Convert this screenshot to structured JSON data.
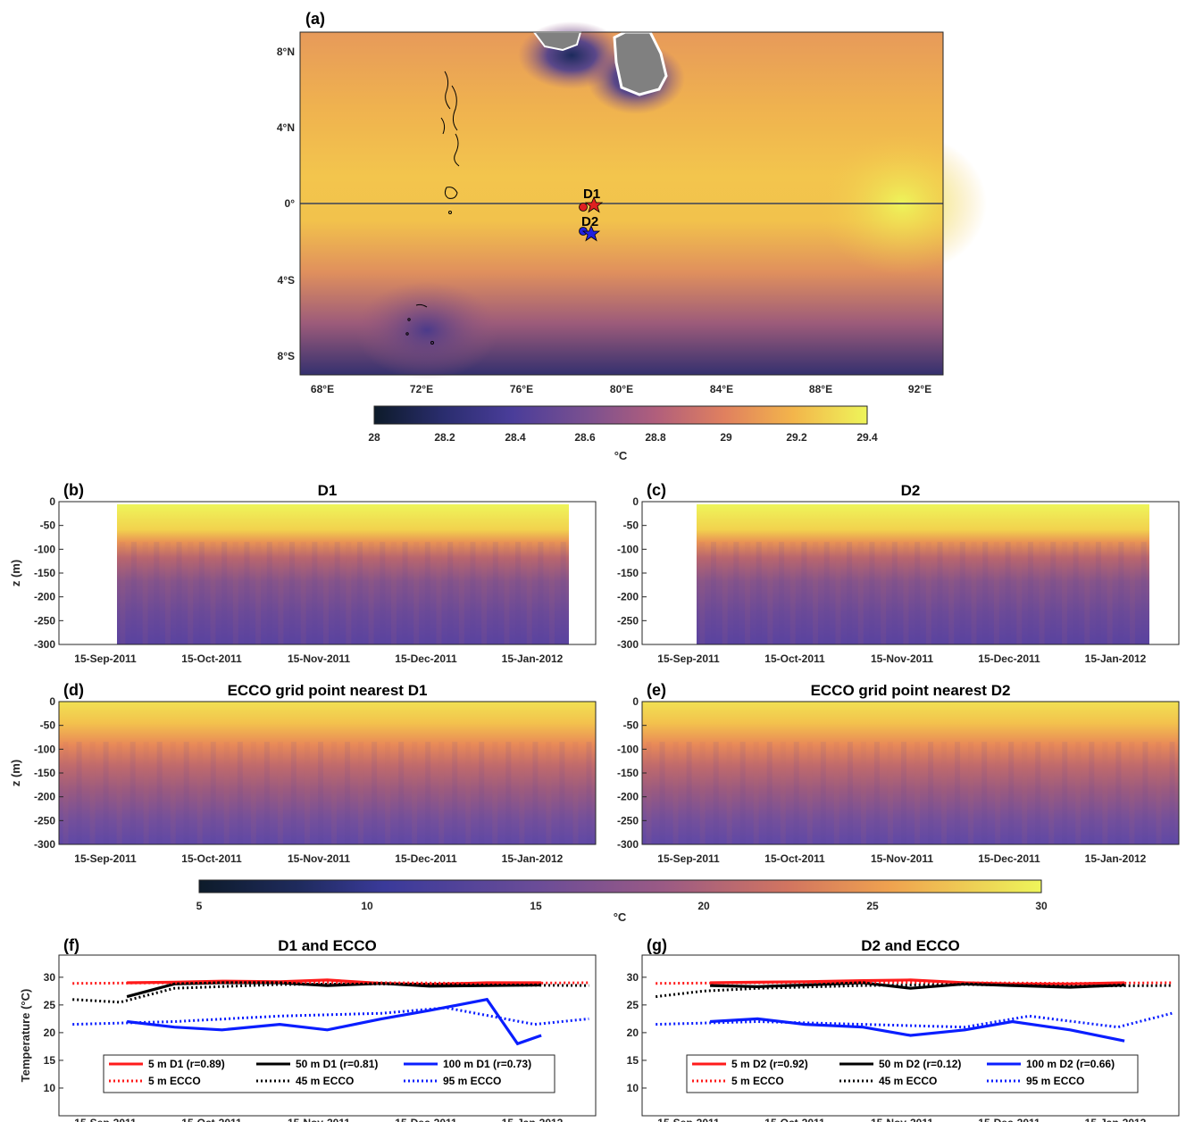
{
  "panels": {
    "a": {
      "label": "(a)",
      "lon_ticks": [
        "68°E",
        "72°E",
        "76°E",
        "80°E",
        "84°E",
        "88°E",
        "92°E"
      ],
      "lat_ticks": [
        "8°N",
        "4°N",
        "0°",
        "4°S",
        "8°S"
      ],
      "markers": [
        {
          "name": "D1",
          "color": "#e02020"
        },
        {
          "name": "D2",
          "color": "#2020e0"
        }
      ],
      "colorbar": {
        "ticks": [
          "28",
          "28.2",
          "28.4",
          "28.6",
          "28.8",
          "29",
          "29.2",
          "29.4"
        ],
        "unit": "°C"
      }
    },
    "b": {
      "label": "(b)",
      "title": "D1"
    },
    "c": {
      "label": "(c)",
      "title": "D2"
    },
    "d": {
      "label": "(d)",
      "title": "ECCO grid point nearest D1"
    },
    "e": {
      "label": "(e)",
      "title": "ECCO grid point nearest D2"
    },
    "f": {
      "label": "(f)",
      "title": "D1 and ECCO"
    },
    "g": {
      "label": "(g)",
      "title": "D2 and ECCO"
    },
    "depth_colorbar": {
      "ticks": [
        "5",
        "10",
        "15",
        "20",
        "25",
        "30"
      ],
      "unit": "°C"
    }
  },
  "axes": {
    "z_label": "z (m)",
    "z_ticks": [
      "0",
      "-50",
      "-100",
      "-150",
      "-200",
      "-250",
      "-300"
    ],
    "date_ticks": [
      "15-Sep-2011",
      "15-Oct-2011",
      "15-Nov-2011",
      "15-Dec-2011",
      "15-Jan-2012"
    ],
    "temp_label": "Temperature (°C)",
    "temp_ticks": [
      "30",
      "25",
      "20",
      "15",
      "10"
    ]
  },
  "colors": {
    "red": "#ff1a1a",
    "black": "#000000",
    "blue": "#0a1eff",
    "land": "#808080"
  },
  "chart_data": [
    {
      "type": "line",
      "title": "D1 and ECCO",
      "xlabel": "",
      "ylabel": "Temperature (°C)",
      "ylim": [
        5,
        34
      ],
      "series": [
        {
          "name": "5 m D1 (r=0.89)",
          "style": "solid",
          "color": "red",
          "x": [
            "2011-09-17",
            "2011-10-01",
            "2011-10-15",
            "2011-11-01",
            "2011-11-15",
            "2011-12-01",
            "2011-12-15",
            "2012-01-01",
            "2012-01-17"
          ],
          "values": [
            29.0,
            29.1,
            29.3,
            29.2,
            29.5,
            28.9,
            28.7,
            29.0,
            29.0
          ]
        },
        {
          "name": "50 m D1 (r=0.81)",
          "style": "solid",
          "color": "black",
          "x": [
            "2011-09-17",
            "2011-10-01",
            "2011-10-15",
            "2011-11-01",
            "2011-11-15",
            "2011-12-01",
            "2011-12-15",
            "2012-01-01",
            "2012-01-17"
          ],
          "values": [
            26.5,
            28.8,
            29.0,
            29.0,
            28.5,
            28.9,
            28.4,
            28.5,
            28.6
          ]
        },
        {
          "name": "100 m D1 (r=0.73)",
          "style": "solid",
          "color": "blue",
          "x": [
            "2011-09-17",
            "2011-10-01",
            "2011-10-15",
            "2011-11-01",
            "2011-11-15",
            "2011-12-01",
            "2011-12-15",
            "2012-01-01",
            "2012-01-10",
            "2012-01-17"
          ],
          "values": [
            22.0,
            21.0,
            20.5,
            21.5,
            20.5,
            22.5,
            24.0,
            26.0,
            18.0,
            19.5
          ]
        },
        {
          "name": "5 m ECCO",
          "style": "dotted",
          "color": "red",
          "x": [
            "2011-09-01",
            "2011-10-01",
            "2011-11-01",
            "2011-12-01",
            "2012-01-01",
            "2012-01-31"
          ],
          "values": [
            28.9,
            29.0,
            29.1,
            29.0,
            28.9,
            29.0
          ]
        },
        {
          "name": "45 m ECCO",
          "style": "dotted",
          "color": "black",
          "x": [
            "2011-09-01",
            "2011-09-15",
            "2011-10-01",
            "2011-11-01",
            "2011-12-01",
            "2012-01-01",
            "2012-01-31"
          ],
          "values": [
            26.0,
            25.5,
            28.0,
            28.7,
            28.8,
            28.6,
            28.5
          ]
        },
        {
          "name": "95 m ECCO",
          "style": "dotted",
          "color": "blue",
          "x": [
            "2011-09-01",
            "2011-10-01",
            "2011-11-01",
            "2011-12-01",
            "2011-12-20",
            "2012-01-15",
            "2012-01-31"
          ],
          "values": [
            21.5,
            22.0,
            23.0,
            23.5,
            24.5,
            21.5,
            22.5
          ]
        }
      ]
    },
    {
      "type": "line",
      "title": "D2 and ECCO",
      "xlabel": "",
      "ylabel": "",
      "ylim": [
        5,
        34
      ],
      "series": [
        {
          "name": "5 m D2 (r=0.92)",
          "style": "solid",
          "color": "red",
          "x": [
            "2011-09-17",
            "2011-10-01",
            "2011-10-15",
            "2011-11-01",
            "2011-11-15",
            "2011-12-01",
            "2011-12-15",
            "2012-01-01",
            "2012-01-17"
          ],
          "values": [
            29.0,
            29.1,
            29.2,
            29.4,
            29.5,
            29.0,
            28.8,
            28.8,
            29.0
          ]
        },
        {
          "name": "50 m D2 (r=0.12)",
          "style": "solid",
          "color": "black",
          "x": [
            "2011-09-17",
            "2011-10-01",
            "2011-10-15",
            "2011-11-01",
            "2011-11-15",
            "2011-12-01",
            "2011-12-15",
            "2012-01-01",
            "2012-01-17"
          ],
          "values": [
            28.5,
            28.3,
            28.6,
            29.0,
            28.0,
            28.8,
            28.5,
            28.2,
            28.6
          ]
        },
        {
          "name": "100 m D2 (r=0.66)",
          "style": "solid",
          "color": "blue",
          "x": [
            "2011-09-17",
            "2011-10-01",
            "2011-10-15",
            "2011-11-01",
            "2011-11-15",
            "2011-12-01",
            "2011-12-15",
            "2012-01-01",
            "2012-01-17"
          ],
          "values": [
            22.0,
            22.5,
            21.5,
            21.0,
            19.5,
            20.5,
            22.0,
            20.5,
            18.5
          ]
        },
        {
          "name": "5 m ECCO",
          "style": "dotted",
          "color": "red",
          "x": [
            "2011-09-01",
            "2011-10-01",
            "2011-11-01",
            "2011-12-01",
            "2012-01-01",
            "2012-01-31"
          ],
          "values": [
            28.9,
            29.0,
            29.1,
            29.0,
            28.9,
            29.0
          ]
        },
        {
          "name": "45 m ECCO",
          "style": "dotted",
          "color": "black",
          "x": [
            "2011-09-01",
            "2011-09-15",
            "2011-10-01",
            "2011-11-01",
            "2011-12-01",
            "2012-01-01",
            "2012-01-31"
          ],
          "values": [
            26.5,
            27.5,
            28.0,
            28.5,
            28.7,
            28.4,
            28.5
          ]
        },
        {
          "name": "95 m ECCO",
          "style": "dotted",
          "color": "blue",
          "x": [
            "2011-09-01",
            "2011-10-01",
            "2011-11-01",
            "2011-12-01",
            "2011-12-20",
            "2012-01-15",
            "2012-01-31"
          ],
          "values": [
            21.5,
            22.0,
            21.5,
            21.0,
            23.0,
            21.0,
            23.5
          ]
        }
      ]
    }
  ]
}
